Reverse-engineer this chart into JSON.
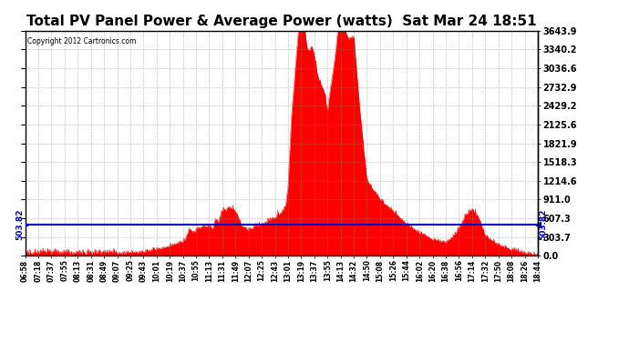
{
  "title": "Total PV Panel Power & Average Power (watts)  Sat Mar 24 18:51",
  "copyright_text": "Copyright 2012 Cartronics.com",
  "avg_line_value": 503.82,
  "avg_line_label": "503.82",
  "y_max": 3643.9,
  "y_min": 0.0,
  "y_ticks": [
    0.0,
    303.7,
    607.3,
    911.0,
    1214.6,
    1518.3,
    1821.9,
    2125.6,
    2429.2,
    2732.9,
    3036.6,
    3340.2,
    3643.9
  ],
  "x_tick_labels": [
    "06:58",
    "07:18",
    "07:37",
    "07:55",
    "08:13",
    "08:31",
    "08:49",
    "09:07",
    "09:25",
    "09:43",
    "10:01",
    "10:19",
    "10:37",
    "10:55",
    "11:13",
    "11:31",
    "11:49",
    "12:07",
    "12:25",
    "12:43",
    "13:01",
    "13:19",
    "13:37",
    "13:55",
    "14:13",
    "14:32",
    "14:50",
    "15:08",
    "15:26",
    "15:44",
    "16:02",
    "16:20",
    "16:38",
    "16:56",
    "17:14",
    "17:32",
    "17:50",
    "18:08",
    "18:26",
    "18:44"
  ],
  "background_color": "#ffffff",
  "plot_bg_color": "#ffffff",
  "grid_color": "#888888",
  "fill_color": "#ff0000",
  "line_color": "#ff0000",
  "avg_line_color": "#0000cc",
  "title_fontsize": 11,
  "figsize": [
    6.9,
    3.75
  ],
  "dpi": 100
}
